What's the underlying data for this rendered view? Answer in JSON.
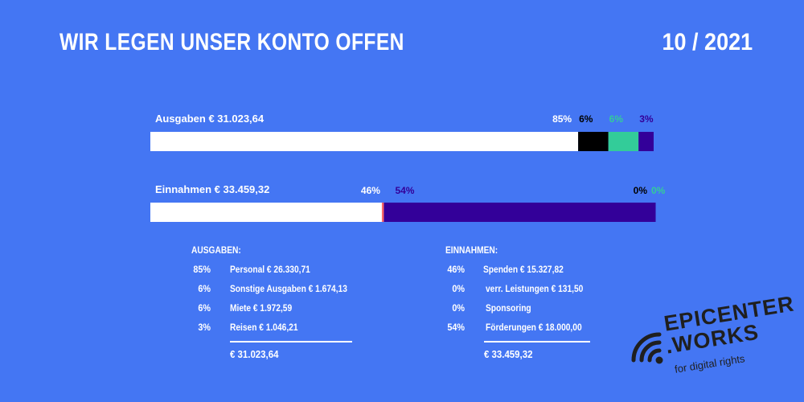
{
  "header": {
    "title": "WIR LEGEN UNSER KONTO OFFEN",
    "date": "10 / 2021"
  },
  "chart_data": {
    "type": "bar",
    "stacked": true,
    "orientation": "horizontal",
    "categories": [
      "Ausgaben € 31.023,64",
      "Einnahmen € 33.459,32"
    ],
    "bars": [
      {
        "label": "Ausgaben € 31.023,64",
        "segments": [
          {
            "name": "Personal",
            "value": 85,
            "display": "85%",
            "color": "#ffffff",
            "labelColor": "#ffffff"
          },
          {
            "name": "Sonstige Ausgaben",
            "value": 6,
            "display": "6%",
            "color": "#000000",
            "labelColor": "#000000"
          },
          {
            "name": "Miete",
            "value": 6,
            "display": "6%",
            "color": "#33cc99",
            "labelColor": "#33cc99"
          },
          {
            "name": "Reisen",
            "value": 3,
            "display": "3%",
            "color": "#330099",
            "labelColor": "#330099"
          }
        ]
      },
      {
        "label": "Einnahmen € 33.459,32",
        "segments": [
          {
            "name": "Spenden",
            "value": 46,
            "display": "46%",
            "color": "#ffffff",
            "labelColor": "#ffffff"
          },
          {
            "name": "verr. Leistungen",
            "value": 0.4,
            "display": "0%",
            "color": "#ff6666",
            "labelColor": "#000000"
          },
          {
            "name": "Sponsoring",
            "value": 0,
            "display": "0%",
            "color": "#33cc99",
            "labelColor": "#33cc99"
          },
          {
            "name": "Förderungen",
            "value": 54,
            "display": "54%",
            "color": "#330099",
            "labelColor": "#330099"
          }
        ]
      }
    ],
    "xlim": [
      0,
      100
    ]
  },
  "ausgaben": {
    "heading": "AUSGABEN:",
    "rows": [
      {
        "pct": "85%",
        "label": "Personal € 26.330,71"
      },
      {
        "pct": "6%",
        "label": "Sonstige Ausgaben € 1.674,13"
      },
      {
        "pct": "6%",
        "label": "Miete € 1.972,59"
      },
      {
        "pct": "3%",
        "label": "Reisen € 1.046,21"
      }
    ],
    "total": "€ 31.023,64"
  },
  "einnahmen": {
    "heading": "EINNAHMEN:",
    "rows": [
      {
        "pct": "46%",
        "label": "Spenden  € 15.327,82"
      },
      {
        "pct": "0%",
        "label": "verr. Leistungen € 131,50"
      },
      {
        "pct": "0%",
        "label": "Sponsoring"
      },
      {
        "pct": "54%",
        "label": "Förderungen € 18.000,00"
      }
    ],
    "total": "€ 33.459,32"
  },
  "logo": {
    "line1": "EPICENTER",
    "line2": ".WORKS",
    "tagline": "for digital rights"
  }
}
